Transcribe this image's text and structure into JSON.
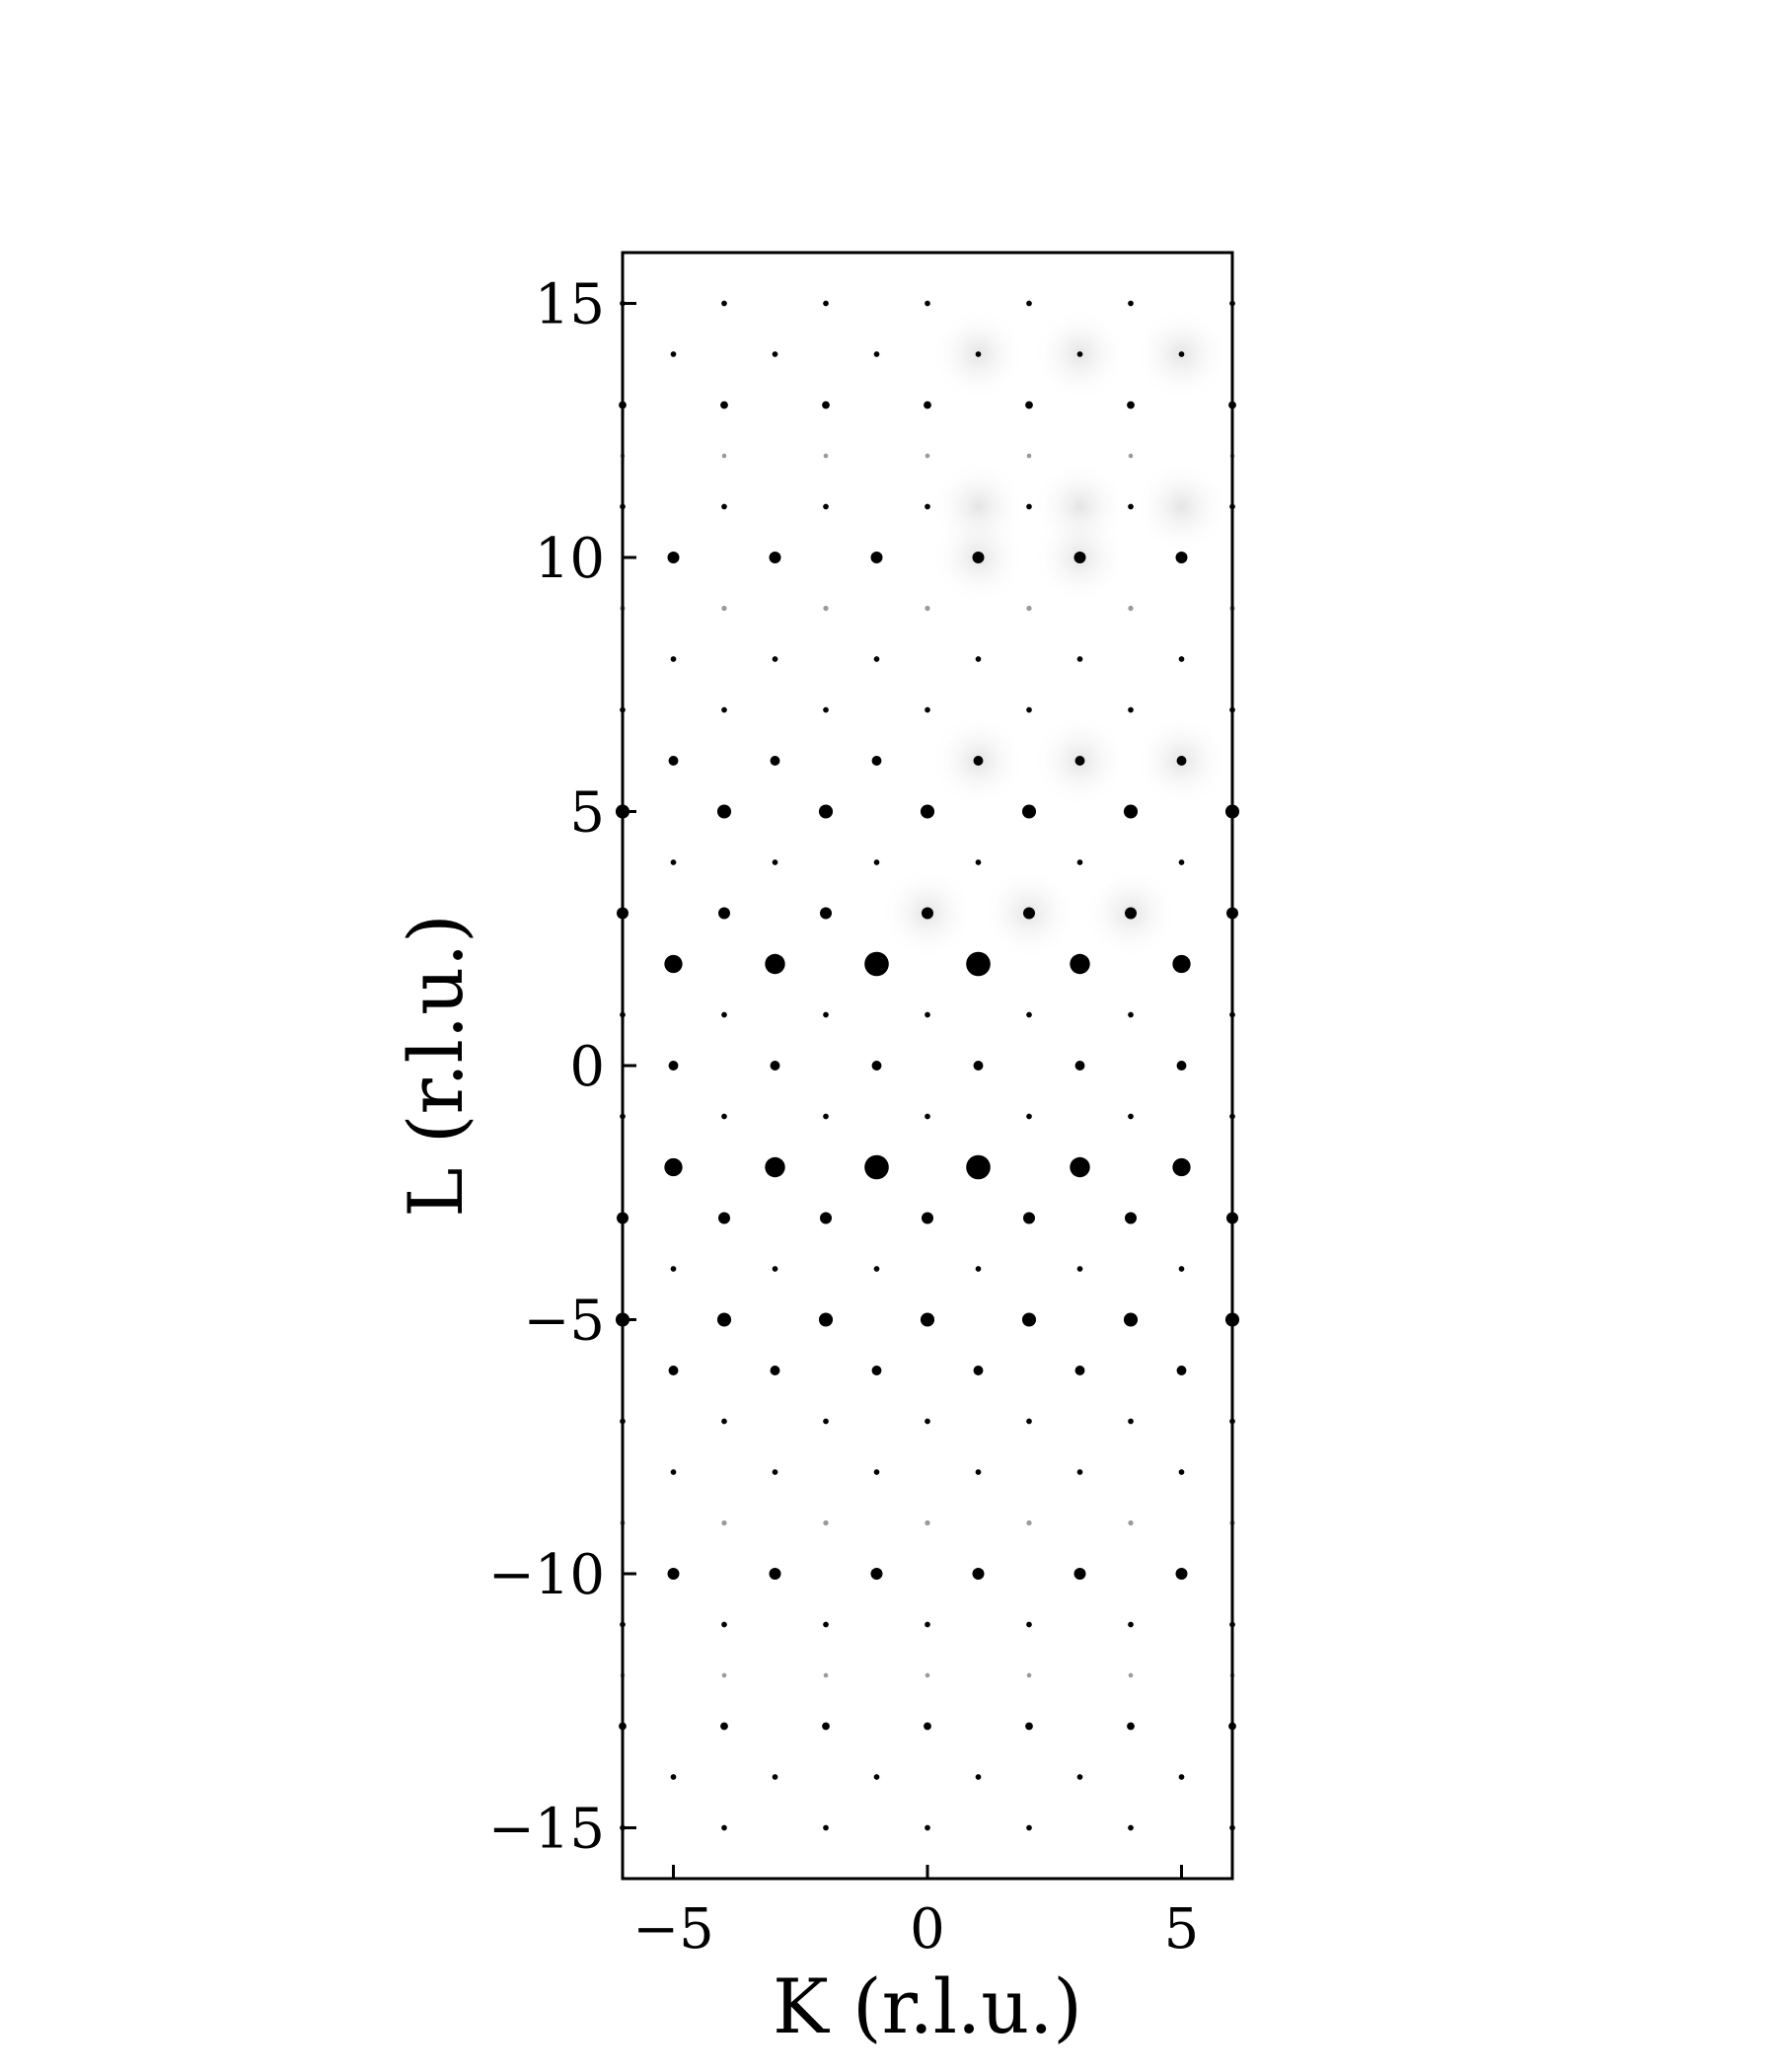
{
  "chart_data": {
    "type": "scatter",
    "title": "",
    "xlabel": "K (r.l.u.)",
    "ylabel": "L (r.l.u.)",
    "xlim": [
      -6,
      6
    ],
    "ylim": [
      -16,
      16
    ],
    "xticks": [
      -5,
      0,
      5
    ],
    "xtick_labels": [
      "−5",
      "0",
      "5"
    ],
    "yticks": [
      -15,
      -10,
      -5,
      0,
      5,
      10,
      15
    ],
    "ytick_labels": [
      "−15",
      "−10",
      "−5",
      "0",
      "5",
      "10",
      "15"
    ],
    "grid": false,
    "legend": "none",
    "marker_color": "#000000",
    "background_shading": "faint grey halos around spots in the region K ≥ 0, L ≥ 1",
    "intensity_scale": "relative marker size, 0 (absent) to 10 (strongest)",
    "series": [
      {
        "description": "odd K lattice points (intensity by L)",
        "k": [
          -5,
          -3,
          -1,
          1,
          3,
          5
        ],
        "l_intensity": {
          "15": 0,
          "14": 1,
          "13": 0,
          "12": 0,
          "11": 0,
          "10": 4,
          "9": 0,
          "8": 1,
          "7": 0,
          "6": 3,
          "5": 0,
          "4": 1,
          "3": 0,
          "2": 7,
          "1": 0,
          "0": 3,
          "-1": 0,
          "-2": 7,
          "-3": 0,
          "-4": 1,
          "-5": 0,
          "-6": 3,
          "-7": 0,
          "-8": 1,
          "-9": 0,
          "-10": 4,
          "-11": 0,
          "-12": 0,
          "-13": 0,
          "-14": 1,
          "-15": 0
        },
        "strong_center": {
          "k": [
            -1,
            1
          ],
          "l": [
            2,
            -2
          ],
          "intensity": 10
        },
        "near_center": {
          "k": [
            -3,
            3
          ],
          "l": [
            2,
            -2
          ],
          "intensity": 8
        }
      },
      {
        "description": "even K lattice points and edge K = ±6 (intensity by L)",
        "k": [
          -6,
          -4,
          -2,
          0,
          2,
          4,
          6
        ],
        "l_intensity": {
          "15": 1,
          "14": 0,
          "13": 2,
          "12": 0.5,
          "11": 1,
          "10": 0,
          "9": 0.8,
          "8": 0,
          "7": 1,
          "6": 0,
          "5": 5,
          "4": 0,
          "3": 4,
          "2": 0,
          "1": 1,
          "0": 0,
          "-1": 1,
          "-2": 0,
          "-3": 4,
          "-4": 0,
          "-5": 5,
          "-6": 0,
          "-7": 1,
          "-8": 0,
          "-9": 0.8,
          "-10": 0,
          "-11": 1,
          "-12": 0.5,
          "-13": 2,
          "-14": 0,
          "-15": 1
        }
      }
    ]
  }
}
